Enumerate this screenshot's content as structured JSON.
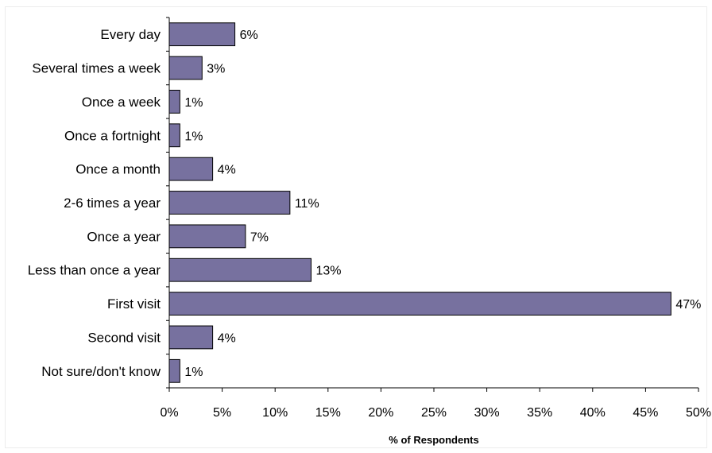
{
  "chart_data": {
    "type": "bar",
    "orientation": "horizontal",
    "categories": [
      "Every day",
      "Several times a week",
      "Once a week",
      "Once a fortnight",
      "Once a month",
      "2-6 times a year",
      "Once a year",
      "Less than once a year",
      "First visit",
      "Second visit",
      "Not sure/don't know"
    ],
    "values": [
      6.2,
      3.1,
      1.0,
      1.0,
      4.1,
      11.4,
      7.2,
      13.4,
      47.4,
      4.1,
      1.0
    ],
    "data_labels": [
      "6%",
      "3%",
      "1%",
      "1%",
      "4%",
      "11%",
      "7%",
      "13%",
      "47%",
      "4%",
      "1%"
    ],
    "xlabel": "% of Respondents",
    "ylabel": "",
    "xlim": [
      0,
      50
    ],
    "xticks": [
      0,
      5,
      10,
      15,
      20,
      25,
      30,
      35,
      40,
      45,
      50
    ],
    "xtick_labels": [
      "0%",
      "5%",
      "10%",
      "15%",
      "20%",
      "25%",
      "30%",
      "35%",
      "40%",
      "45%",
      "50%"
    ],
    "bar_color": "#77719f",
    "bar_outline": "#000000",
    "grid": false,
    "legend": "none"
  }
}
